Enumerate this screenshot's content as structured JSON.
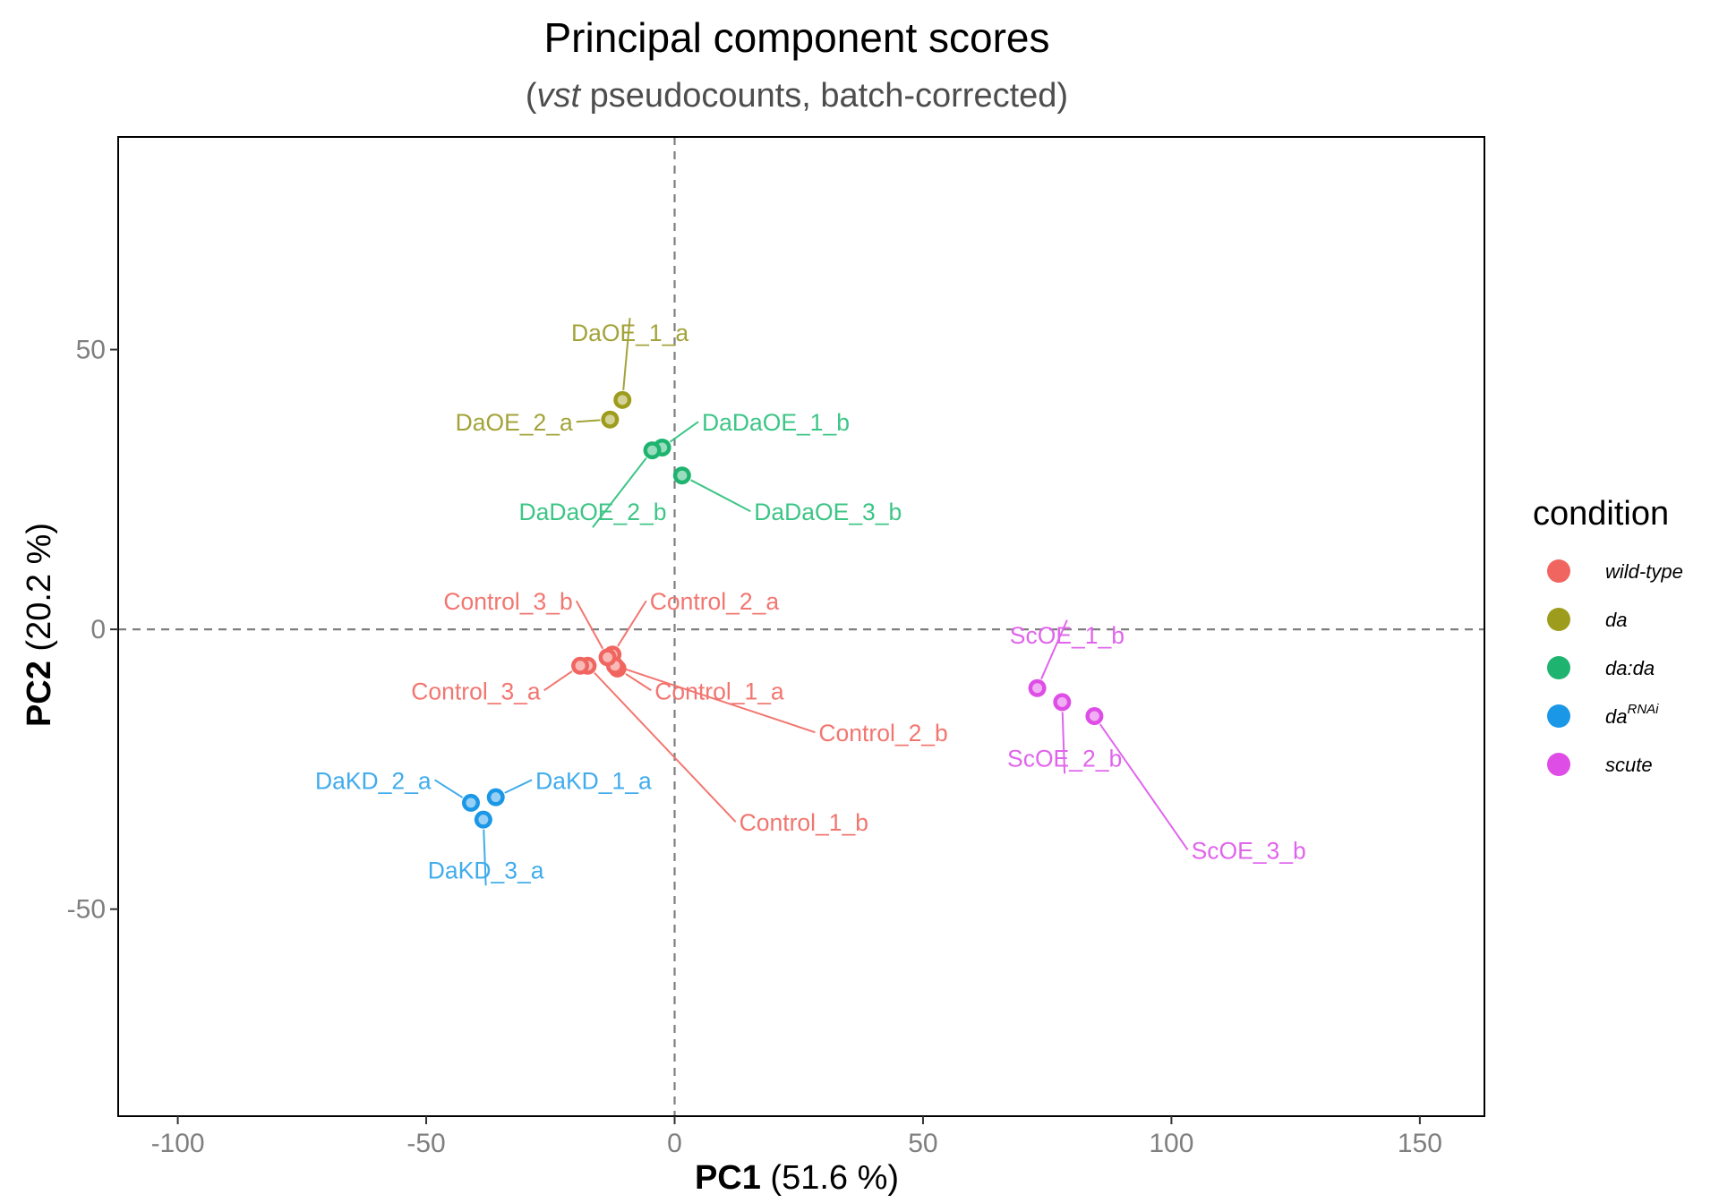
{
  "chart_data": {
    "type": "scatter",
    "title": "Principal component scores",
    "subtitle": {
      "before": "(",
      "italic": "vst",
      "after": " pseudocounts, batch-corrected)"
    },
    "xlabel": {
      "bold": "PC1",
      "rest": " (51.6 %)"
    },
    "ylabel": {
      "bold": "PC2",
      "rest": " (20.2 %)"
    },
    "xlim": [
      -112,
      163
    ],
    "ylim": [
      -87,
      88
    ],
    "xticks": [
      -100,
      -50,
      0,
      50,
      100,
      150
    ],
    "yticks": [
      -50,
      0,
      50
    ],
    "reference_lines": {
      "x": 0,
      "y": 0
    },
    "legend": {
      "title": "condition",
      "placement": "right",
      "entries": [
        {
          "key": "wild-type",
          "label": "wild-type",
          "sup": "",
          "color": "#F0655F"
        },
        {
          "key": "da",
          "label": "da",
          "sup": "",
          "color": "#9E9C1C"
        },
        {
          "key": "dada",
          "label": "da:da",
          "sup": "",
          "color": "#1EB46F"
        },
        {
          "key": "darnai",
          "label": "da",
          "sup": "RNAi",
          "color": "#1A97E6"
        },
        {
          "key": "scute",
          "label": "scute",
          "sup": "",
          "color": "#DE4DE6"
        }
      ]
    },
    "label_colors": {
      "wild-type": "#F27670",
      "da": "#A3A33A",
      "dada": "#3DC586",
      "darnai": "#41ACEC",
      "scute": "#E065EC"
    },
    "points": [
      {
        "label": "Control_1_a",
        "condition": "wild-type",
        "x": -11.5,
        "y": -7,
        "label_x": -4,
        "label_y": -12.5,
        "anchor": "start"
      },
      {
        "label": "Control_1_b",
        "condition": "wild-type",
        "x": -17.5,
        "y": -6.5,
        "label_x": 13,
        "label_y": -36,
        "anchor": "start"
      },
      {
        "label": "Control_2_a",
        "condition": "wild-type",
        "x": -12.5,
        "y": -4.5,
        "label_x": -5,
        "label_y": 3.5,
        "anchor": "start"
      },
      {
        "label": "Control_2_b",
        "condition": "wild-type",
        "x": -12,
        "y": -6.5,
        "label_x": 29,
        "label_y": -20,
        "anchor": "start"
      },
      {
        "label": "Control_3_a",
        "condition": "wild-type",
        "x": -19,
        "y": -6.5,
        "label_x": -27,
        "label_y": -12.5,
        "anchor": "end"
      },
      {
        "label": "Control_3_b",
        "condition": "wild-type",
        "x": -13.5,
        "y": -5,
        "label_x": -20.5,
        "label_y": 3.5,
        "anchor": "end"
      },
      {
        "label": "DaOE_1_a",
        "condition": "da",
        "x": -10.5,
        "y": 41,
        "label_x": -9,
        "label_y": 51.5,
        "anchor": "middle"
      },
      {
        "label": "DaOE_2_a",
        "condition": "da",
        "x": -13,
        "y": 37.5,
        "label_x": -20.5,
        "label_y": 35.5,
        "anchor": "end"
      },
      {
        "label": "DaDaOE_1_b",
        "condition": "dada",
        "x": -2.5,
        "y": 32.5,
        "label_x": 5.5,
        "label_y": 35.5,
        "anchor": "start"
      },
      {
        "label": "DaDaOE_2_b",
        "condition": "dada",
        "x": -4.5,
        "y": 32,
        "label_x": -16.5,
        "label_y": 19.5,
        "anchor": "middle"
      },
      {
        "label": "DaDaOE_3_b",
        "condition": "dada",
        "x": 1.5,
        "y": 27.5,
        "label_x": 16,
        "label_y": 19.5,
        "anchor": "start"
      },
      {
        "label": "DaKD_1_a",
        "condition": "darnai",
        "x": -36,
        "y": -30,
        "label_x": -28,
        "label_y": -28.5,
        "anchor": "start"
      },
      {
        "label": "DaKD_2_a",
        "condition": "darnai",
        "x": -41,
        "y": -31,
        "label_x": -49,
        "label_y": -28.5,
        "anchor": "end"
      },
      {
        "label": "DaKD_3_a",
        "condition": "darnai",
        "x": -38.5,
        "y": -34,
        "label_x": -38,
        "label_y": -44.5,
        "anchor": "middle"
      },
      {
        "label": "ScOE_1_b",
        "condition": "scute",
        "x": 73,
        "y": -10.5,
        "label_x": 79,
        "label_y": -2.5,
        "anchor": "middle"
      },
      {
        "label": "ScOE_2_b",
        "condition": "scute",
        "x": 78,
        "y": -13,
        "label_x": 78.5,
        "label_y": -24.5,
        "anchor": "middle"
      },
      {
        "label": "ScOE_3_b",
        "condition": "scute",
        "x": 84.5,
        "y": -15.5,
        "label_x": 104,
        "label_y": -41,
        "anchor": "start"
      }
    ]
  }
}
